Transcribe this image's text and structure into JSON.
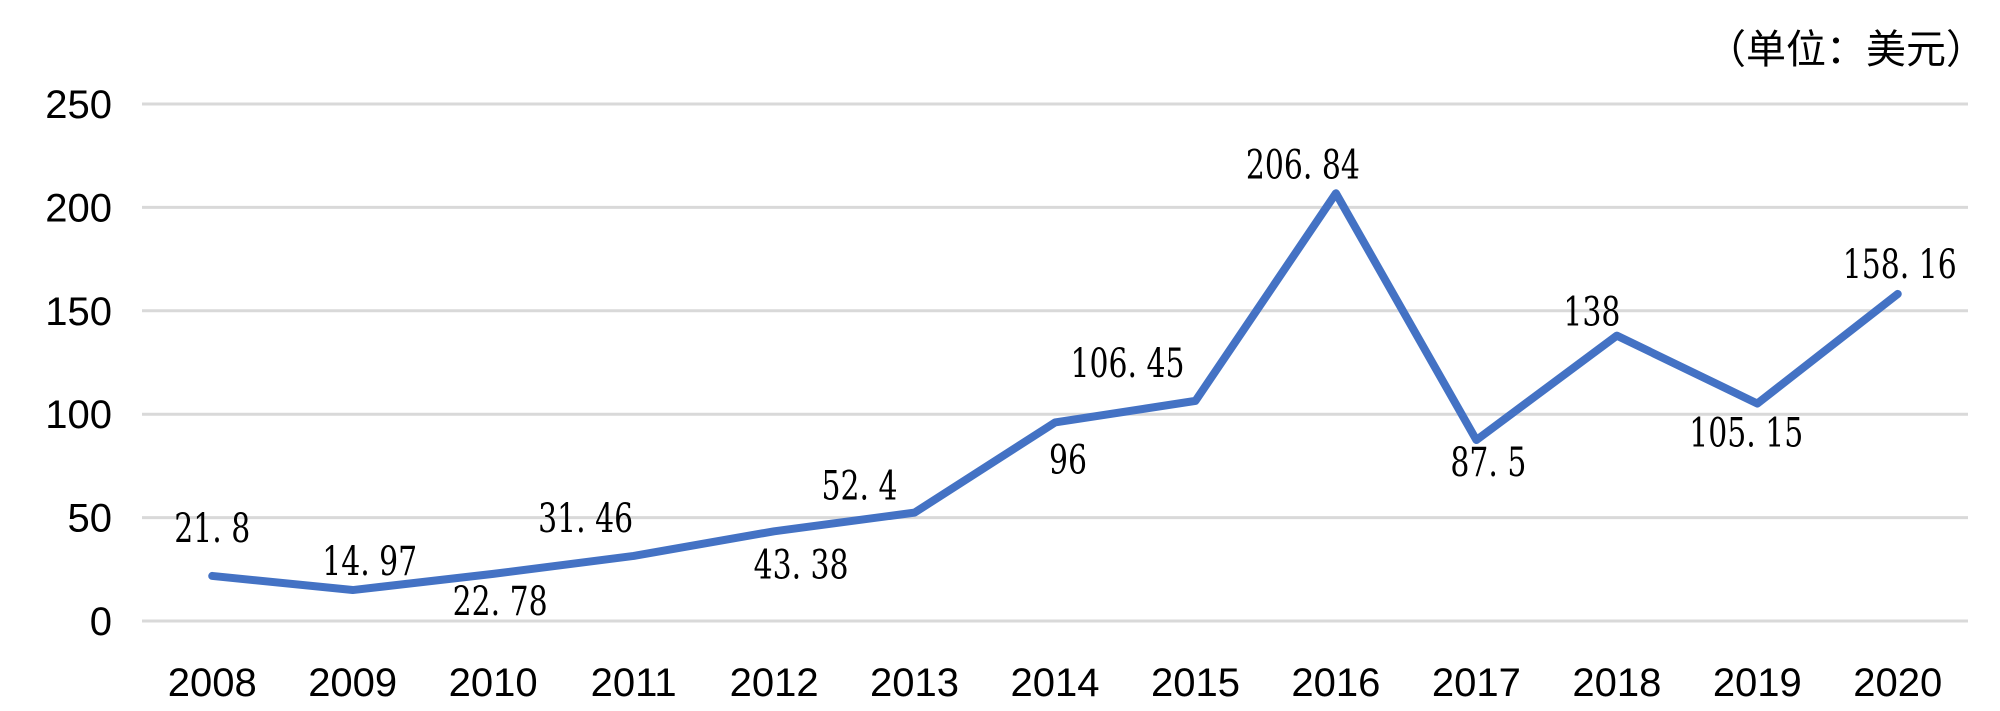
{
  "chart_data": {
    "type": "line",
    "title": "",
    "unit_note": "（单位：美元）",
    "categories": [
      "2008",
      "2009",
      "2010",
      "2011",
      "2012",
      "2013",
      "2014",
      "2015",
      "2016",
      "2017",
      "2018",
      "2019",
      "2020"
    ],
    "series": [
      {
        "name": "美元",
        "values": [
          21.8,
          14.97,
          22.78,
          31.46,
          43.38,
          52.4,
          96,
          106.45,
          206.84,
          87.5,
          138,
          105.15,
          158.16
        ],
        "color": "#4472C4",
        "data_labels_visible": true,
        "data_label_positions": [
          "above",
          "above",
          "below",
          "above",
          "below",
          "above",
          "below",
          "above",
          "above",
          "below",
          "above",
          "below",
          "above"
        ]
      }
    ],
    "xlabel": "",
    "ylabel": "",
    "ylim": [
      0,
      250
    ],
    "yticks": [
      250,
      200,
      150,
      100,
      50,
      0
    ],
    "grid": true,
    "legend": "none",
    "gridline_color": "#D9D9D9",
    "text_color": "#000000",
    "background": "#FFFFFF"
  }
}
